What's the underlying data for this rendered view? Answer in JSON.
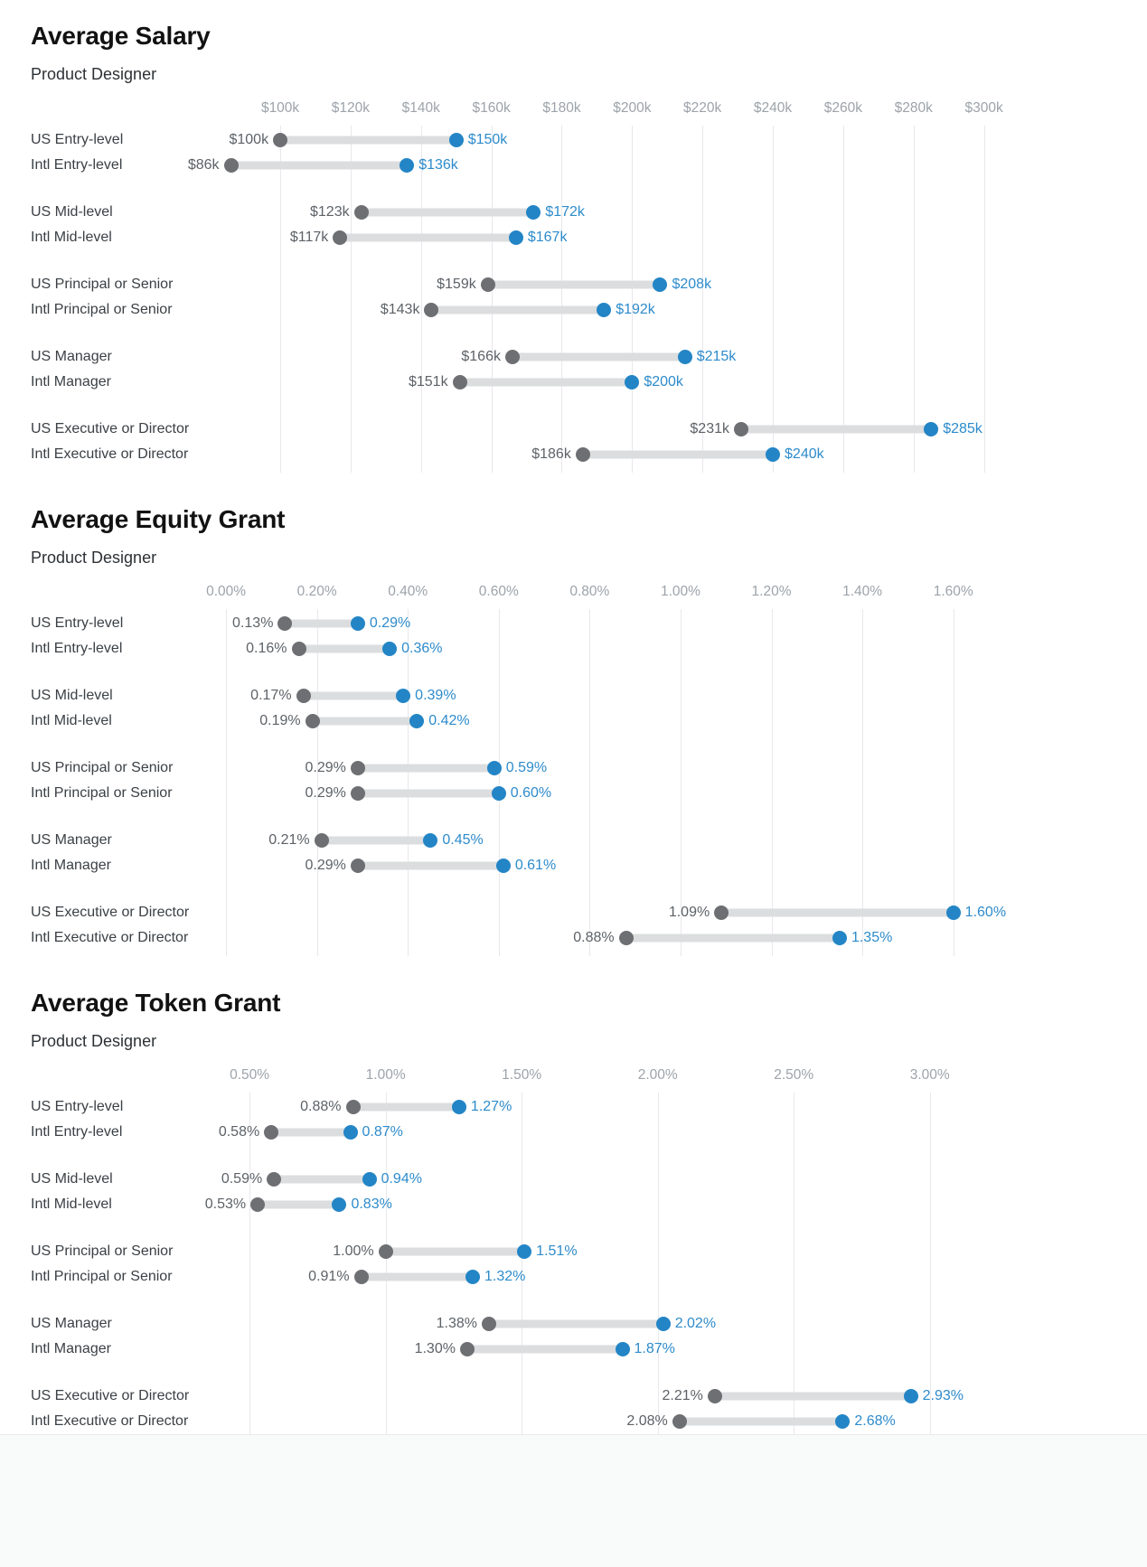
{
  "colors": {
    "accent_blue": "#2385c6",
    "dot_gray": "#6d6f72",
    "bar_gray": "#dbdddf",
    "grid_line": "#e8e8ed",
    "axis_text": "#9da3aa",
    "min_value_text": "#5d6267",
    "max_value_text": "#2d8bcb",
    "row_label_text": "#3b4045",
    "title_text": "#121212"
  },
  "chart_data": [
    {
      "type": "dumbbell",
      "title": "Average Salary",
      "subtitle": "Product Designer",
      "legend": "gray dot = low value, blue dot = high value",
      "grid": true,
      "axis": {
        "min": 82,
        "max": 305.5,
        "ticks": [
          {
            "value": 100,
            "label": "$100k"
          },
          {
            "value": 120,
            "label": "$120k"
          },
          {
            "value": 140,
            "label": "$140k"
          },
          {
            "value": 160,
            "label": "$160k"
          },
          {
            "value": 180,
            "label": "$180k"
          },
          {
            "value": 200,
            "label": "$200k"
          },
          {
            "value": 220,
            "label": "$220k"
          },
          {
            "value": 240,
            "label": "$240k"
          },
          {
            "value": 260,
            "label": "$260k"
          },
          {
            "value": 280,
            "label": "$280k"
          },
          {
            "value": 300,
            "label": "$300k"
          }
        ]
      },
      "rows": [
        {
          "category": "US Entry-level",
          "min": 100,
          "max": 150,
          "min_label": "$100k",
          "max_label": "$150k"
        },
        {
          "category": "Intl Entry-level",
          "min": 86,
          "max": 136,
          "min_label": "$86k",
          "max_label": "$136k"
        },
        {
          "category": "US Mid-level",
          "min": 123,
          "max": 172,
          "min_label": "$123k",
          "max_label": "$172k"
        },
        {
          "category": "Intl Mid-level",
          "min": 117,
          "max": 167,
          "min_label": "$117k",
          "max_label": "$167k"
        },
        {
          "category": "US Principal or Senior",
          "min": 159,
          "max": 208,
          "min_label": "$159k",
          "max_label": "$208k"
        },
        {
          "category": "Intl Principal or Senior",
          "min": 143,
          "max": 192,
          "min_label": "$143k",
          "max_label": "$192k"
        },
        {
          "category": "US Manager",
          "min": 166,
          "max": 215,
          "min_label": "$166k",
          "max_label": "$215k"
        },
        {
          "category": "Intl Manager",
          "min": 151,
          "max": 200,
          "min_label": "$151k",
          "max_label": "$200k"
        },
        {
          "category": "US Executive or Director",
          "min": 231,
          "max": 285,
          "min_label": "$231k",
          "max_label": "$285k"
        },
        {
          "category": "Intl Executive or Director",
          "min": 186,
          "max": 240,
          "min_label": "$186k",
          "max_label": "$240k"
        }
      ]
    },
    {
      "type": "dumbbell",
      "title": "Average Equity Grant",
      "subtitle": "Product Designer",
      "legend": "gray dot = low value, blue dot = high value",
      "grid": true,
      "axis": {
        "min": -0.02,
        "max": 1.71,
        "ticks": [
          {
            "value": 0.0,
            "label": "0.00%"
          },
          {
            "value": 0.2,
            "label": "0.20%"
          },
          {
            "value": 0.4,
            "label": "0.40%"
          },
          {
            "value": 0.6,
            "label": "0.60%"
          },
          {
            "value": 0.8,
            "label": "0.80%"
          },
          {
            "value": 1.0,
            "label": "1.00%"
          },
          {
            "value": 1.2,
            "label": "1.20%"
          },
          {
            "value": 1.4,
            "label": "1.40%"
          },
          {
            "value": 1.6,
            "label": "1.60%"
          }
        ]
      },
      "rows": [
        {
          "category": "US Entry-level",
          "min": 0.13,
          "max": 0.29,
          "min_label": "0.13%",
          "max_label": "0.29%"
        },
        {
          "category": "Intl Entry-level",
          "min": 0.16,
          "max": 0.36,
          "min_label": "0.16%",
          "max_label": "0.36%"
        },
        {
          "category": "US Mid-level",
          "min": 0.17,
          "max": 0.39,
          "min_label": "0.17%",
          "max_label": "0.39%"
        },
        {
          "category": "Intl Mid-level",
          "min": 0.19,
          "max": 0.42,
          "min_label": "0.19%",
          "max_label": "0.42%"
        },
        {
          "category": "US Principal or Senior",
          "min": 0.29,
          "max": 0.59,
          "min_label": "0.29%",
          "max_label": "0.59%"
        },
        {
          "category": "Intl Principal or Senior",
          "min": 0.29,
          "max": 0.6,
          "min_label": "0.29%",
          "max_label": "0.60%"
        },
        {
          "category": "US Manager",
          "min": 0.21,
          "max": 0.45,
          "min_label": "0.21%",
          "max_label": "0.45%"
        },
        {
          "category": "Intl Manager",
          "min": 0.29,
          "max": 0.61,
          "min_label": "0.29%",
          "max_label": "0.61%"
        },
        {
          "category": "US Executive or Director",
          "min": 1.09,
          "max": 1.6,
          "min_label": "1.09%",
          "max_label": "1.60%"
        },
        {
          "category": "Intl Executive or Director",
          "min": 0.88,
          "max": 1.35,
          "min_label": "0.88%",
          "max_label": "1.35%"
        }
      ]
    },
    {
      "type": "dumbbell",
      "title": "Average Token Grant",
      "subtitle": "Product Designer",
      "legend": "gray dot = low value, blue dot = high value",
      "grid": true,
      "axis": {
        "min": 0.38,
        "max": 3.27,
        "ticks": [
          {
            "value": 0.5,
            "label": "0.50%"
          },
          {
            "value": 1.0,
            "label": "1.00%"
          },
          {
            "value": 1.5,
            "label": "1.50%"
          },
          {
            "value": 2.0,
            "label": "2.00%"
          },
          {
            "value": 2.5,
            "label": "2.50%"
          },
          {
            "value": 3.0,
            "label": "3.00%"
          }
        ]
      },
      "rows": [
        {
          "category": "US Entry-level",
          "min": 0.88,
          "max": 1.27,
          "min_label": "0.88%",
          "max_label": "1.27%"
        },
        {
          "category": "Intl Entry-level",
          "min": 0.58,
          "max": 0.87,
          "min_label": "0.58%",
          "max_label": "0.87%"
        },
        {
          "category": "US Mid-level",
          "min": 0.59,
          "max": 0.94,
          "min_label": "0.59%",
          "max_label": "0.94%"
        },
        {
          "category": "Intl Mid-level",
          "min": 0.53,
          "max": 0.83,
          "min_label": "0.53%",
          "max_label": "0.83%"
        },
        {
          "category": "US Principal or Senior",
          "min": 1.0,
          "max": 1.51,
          "min_label": "1.00%",
          "max_label": "1.51%"
        },
        {
          "category": "Intl Principal or Senior",
          "min": 0.91,
          "max": 1.32,
          "min_label": "0.91%",
          "max_label": "1.32%"
        },
        {
          "category": "US Manager",
          "min": 1.38,
          "max": 2.02,
          "min_label": "1.38%",
          "max_label": "2.02%"
        },
        {
          "category": "Intl Manager",
          "min": 1.3,
          "max": 1.87,
          "min_label": "1.30%",
          "max_label": "1.87%"
        },
        {
          "category": "US Executive or Director",
          "min": 2.21,
          "max": 2.93,
          "min_label": "2.21%",
          "max_label": "2.93%"
        },
        {
          "category": "Intl Executive or Director",
          "min": 2.08,
          "max": 2.68,
          "min_label": "2.08%",
          "max_label": "2.68%"
        }
      ]
    }
  ]
}
